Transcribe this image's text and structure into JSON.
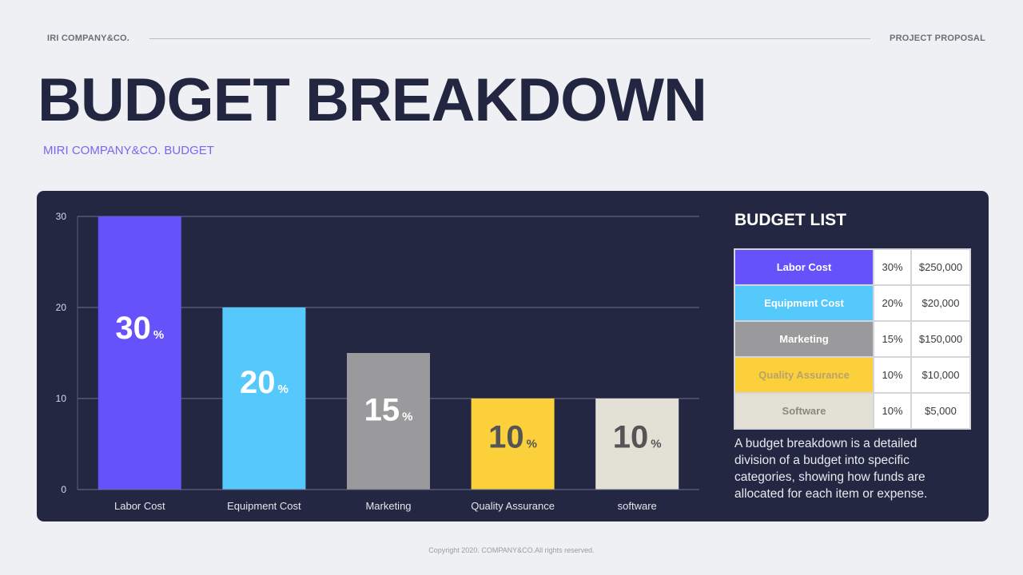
{
  "header": {
    "company": "IRI COMPANY&CO.",
    "section": "PROJECT PROPOSAL"
  },
  "title": "BUDGET BREAKDOWN",
  "subtitle": "MIRI COMPANY&CO. BUDGET",
  "colors": {
    "background": "#eef0f3",
    "panel": "#242741",
    "title": "#232640",
    "accent": "#7c66f0",
    "labor": "#6552fb",
    "equipment": "#55c9fb",
    "marketing": "#9a9a9c",
    "quality": "#fbd03a",
    "software": "#e3e0d6"
  },
  "chart_data": {
    "type": "bar",
    "categories": [
      "Labor Cost",
      "Equipment Cost",
      "Marketing",
      "Quality Assurance",
      "software"
    ],
    "values": [
      30,
      20,
      15,
      10,
      10
    ],
    "bar_labels": [
      "30",
      "20",
      "15",
      "10",
      "10"
    ],
    "label_unit": "%",
    "bar_colors": [
      "#6552fb",
      "#55c9fb",
      "#9a9a9c",
      "#fbd03a",
      "#e3e0d6"
    ],
    "label_colors": [
      "#ffffff",
      "#ffffff",
      "#ffffff",
      "#555555",
      "#555555"
    ],
    "yticks": [
      "0",
      "10",
      "20",
      "30"
    ],
    "ylim": [
      0,
      30
    ],
    "grid": true
  },
  "budget_list": {
    "title": "BUDGET LIST",
    "rows": [
      {
        "category": "Labor Cost",
        "percent": "30%",
        "amount": "$250,000",
        "color": "#6552fb",
        "text_color": "#ffffff"
      },
      {
        "category": "Equipment Cost",
        "percent": "20%",
        "amount": "$20,000",
        "color": "#55c9fb",
        "text_color": "#ffffff"
      },
      {
        "category": "Marketing",
        "percent": "15%",
        "amount": "$150,000",
        "color": "#9a9a9c",
        "text_color": "#ffffff"
      },
      {
        "category": "Quality Assurance",
        "percent": "10%",
        "amount": "$10,000",
        "color": "#fbd03a",
        "text_color": "#b8a36a"
      },
      {
        "category": "Software",
        "percent": "10%",
        "amount": "$5,000",
        "color": "#e3e0d6",
        "text_color": "#8a8880"
      }
    ],
    "description": "A budget breakdown is a detailed division of a budget into specific categories, showing how funds are allocated for each item or expense."
  },
  "footer": "Copyright 2020. COMPANY&CO.All rights reserved."
}
